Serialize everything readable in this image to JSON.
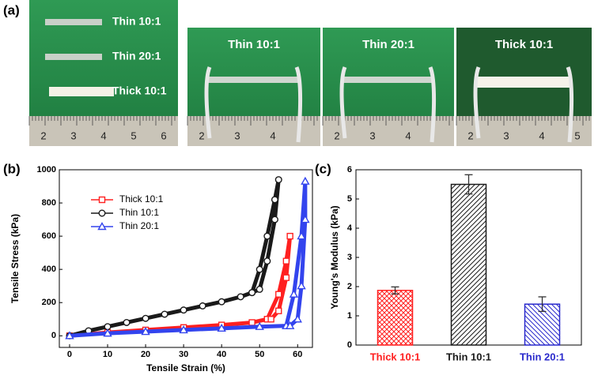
{
  "panel_labels": [
    "(a)",
    "(b)",
    "(c)"
  ],
  "photos": [
    {
      "labels": [
        "Thin 10:1",
        "Thin 20:1",
        "Thick 10:1"
      ],
      "ruler": [
        "2",
        "3",
        "4",
        "5",
        "6"
      ]
    },
    {
      "labels": [
        "Thin 10:1"
      ],
      "ruler": [
        "2",
        "3",
        "4"
      ]
    },
    {
      "labels": [
        "Thin 20:1"
      ],
      "ruler": [
        "2",
        "3",
        "4"
      ]
    },
    {
      "labels": [
        "Thick 10:1"
      ],
      "ruler": [
        "2",
        "3",
        "4",
        "5"
      ]
    }
  ],
  "chart_data": [
    {
      "type": "line",
      "x_label": "Tensile Strain (%)",
      "y_label": "Tensile Stress (kPa)",
      "xlim": [
        -2.7,
        63.9
      ],
      "ylim": [
        -70,
        1000
      ],
      "xticks": [
        0,
        10,
        20,
        30,
        40,
        50,
        60
      ],
      "yticks": [
        0,
        200,
        400,
        600,
        800,
        1000
      ],
      "legend": "upper left",
      "series": [
        {
          "name": "Thick 10:1",
          "color": "#ff2020",
          "marker": "square",
          "x": [
            0,
            10,
            20,
            30,
            40,
            48,
            52,
            55,
            57,
            58,
            57,
            55,
            53
          ],
          "values": [
            0,
            20,
            35,
            50,
            65,
            80,
            100,
            250,
            450,
            600,
            350,
            150,
            100
          ]
        },
        {
          "name": "Thin 10:1",
          "color": "#1a1a1a",
          "marker": "circle",
          "x": [
            0,
            5,
            10,
            15,
            20,
            25,
            30,
            35,
            40,
            45,
            48,
            50,
            52,
            54,
            55,
            54,
            52,
            50,
            48
          ],
          "values": [
            0,
            30,
            55,
            80,
            105,
            130,
            155,
            180,
            205,
            235,
            260,
            400,
            600,
            820,
            940,
            700,
            450,
            280,
            260
          ]
        },
        {
          "name": "Thin 20:1",
          "color": "#3344ee",
          "marker": "triangle",
          "x": [
            0,
            10,
            20,
            30,
            40,
            50,
            57,
            59,
            61,
            62,
            62,
            61,
            60,
            58
          ],
          "values": [
            0,
            15,
            25,
            35,
            45,
            55,
            60,
            250,
            600,
            930,
            700,
            300,
            100,
            60
          ]
        }
      ]
    },
    {
      "type": "bar",
      "y_label": "Young's Modulus (kPa)",
      "categories": [
        "Thick 10:1",
        "Thin 10:1",
        "Thin 20:1"
      ],
      "values": [
        1.87,
        5.5,
        1.4
      ],
      "errors": [
        0.12,
        0.33,
        0.25
      ],
      "colors": [
        "#ff2020",
        "#1a1a1a",
        "#2a2acc"
      ],
      "hatches": [
        "cross",
        "diag",
        "diag2"
      ],
      "ylim": [
        0,
        6
      ],
      "yticks": [
        0,
        1,
        2,
        3,
        4,
        5,
        6
      ]
    }
  ]
}
